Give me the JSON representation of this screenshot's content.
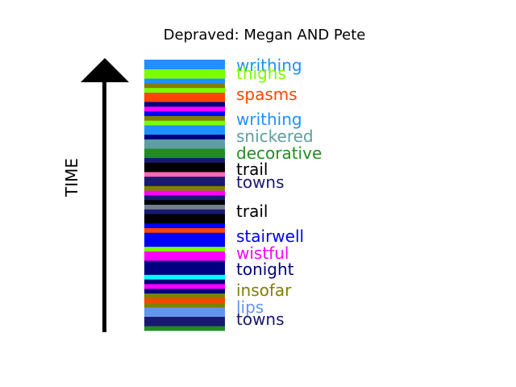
{
  "chart_data": {
    "type": "bar",
    "title": "Depraved: Megan AND Pete",
    "axis_label": "TIME",
    "stripes": [
      {
        "color": "#228b22"
      },
      {
        "color": "#191970"
      },
      {
        "color": "#191970"
      },
      {
        "color": "#6495ed"
      },
      {
        "color": "#6495ed"
      },
      {
        "color": "#808000"
      },
      {
        "color": "#ff4500"
      },
      {
        "color": "#808000"
      },
      {
        "color": "#000080"
      },
      {
        "color": "#ff00ff"
      },
      {
        "color": "#000080"
      },
      {
        "color": "#00ffff"
      },
      {
        "color": "#000080"
      },
      {
        "color": "#000080"
      },
      {
        "color": "#000080"
      },
      {
        "color": "#ff00ff"
      },
      {
        "color": "#ff00ff"
      },
      {
        "color": "#7cfc00"
      },
      {
        "color": "#0000ff"
      },
      {
        "color": "#0000ff"
      },
      {
        "color": "#0000ff"
      },
      {
        "color": "#ff4500"
      },
      {
        "color": "#0000ff"
      },
      {
        "color": "#000000"
      },
      {
        "color": "#000000"
      },
      {
        "color": "#191970"
      },
      {
        "color": "#708090"
      },
      {
        "color": "#000000"
      },
      {
        "color": "#191970"
      },
      {
        "color": "#ff00ff"
      },
      {
        "color": "#808000"
      },
      {
        "color": "#191970"
      },
      {
        "color": "#191970"
      },
      {
        "color": "#ff69b4"
      },
      {
        "color": "#000000"
      },
      {
        "color": "#000000"
      },
      {
        "color": "#191970"
      },
      {
        "color": "#228b22"
      },
      {
        "color": "#228b22"
      },
      {
        "color": "#5f9ea0"
      },
      {
        "color": "#5f9ea0"
      },
      {
        "color": "#000080"
      },
      {
        "color": "#1e90ff"
      },
      {
        "color": "#1e90ff"
      },
      {
        "color": "#7cfc00"
      },
      {
        "color": "#808000"
      },
      {
        "color": "#0000ff"
      },
      {
        "color": "#ff00ff"
      },
      {
        "color": "#000080"
      },
      {
        "color": "#ff4500"
      },
      {
        "color": "#ff4500"
      },
      {
        "color": "#7cfc00"
      },
      {
        "color": "#808000"
      },
      {
        "color": "#1e90ff"
      },
      {
        "color": "#7cfc00"
      },
      {
        "color": "#7cfc00"
      },
      {
        "color": "#1e90ff"
      },
      {
        "color": "#1e90ff"
      }
    ],
    "labels": [
      {
        "text": "writhing",
        "color": "#1e90ff"
      },
      {
        "text": "thighs",
        "color": "#7cfc00"
      },
      {
        "text": "spasms",
        "color": "#ff4500"
      },
      {
        "text": "writhing",
        "color": "#1e90ff"
      },
      {
        "text": "snickered",
        "color": "#5f9ea0"
      },
      {
        "text": "decorative",
        "color": "#228b22"
      },
      {
        "text": "trail",
        "color": "#000000"
      },
      {
        "text": "towns",
        "color": "#191970"
      },
      {
        "text": "trail",
        "color": "#000000"
      },
      {
        "text": "stairwell",
        "color": "#0000ff"
      },
      {
        "text": "wistful",
        "color": "#ff00ff"
      },
      {
        "text": "tonight",
        "color": "#000080"
      },
      {
        "text": "insofar",
        "color": "#808000"
      },
      {
        "text": "lips",
        "color": "#6495ed"
      },
      {
        "text": "towns",
        "color": "#191970"
      }
    ]
  }
}
